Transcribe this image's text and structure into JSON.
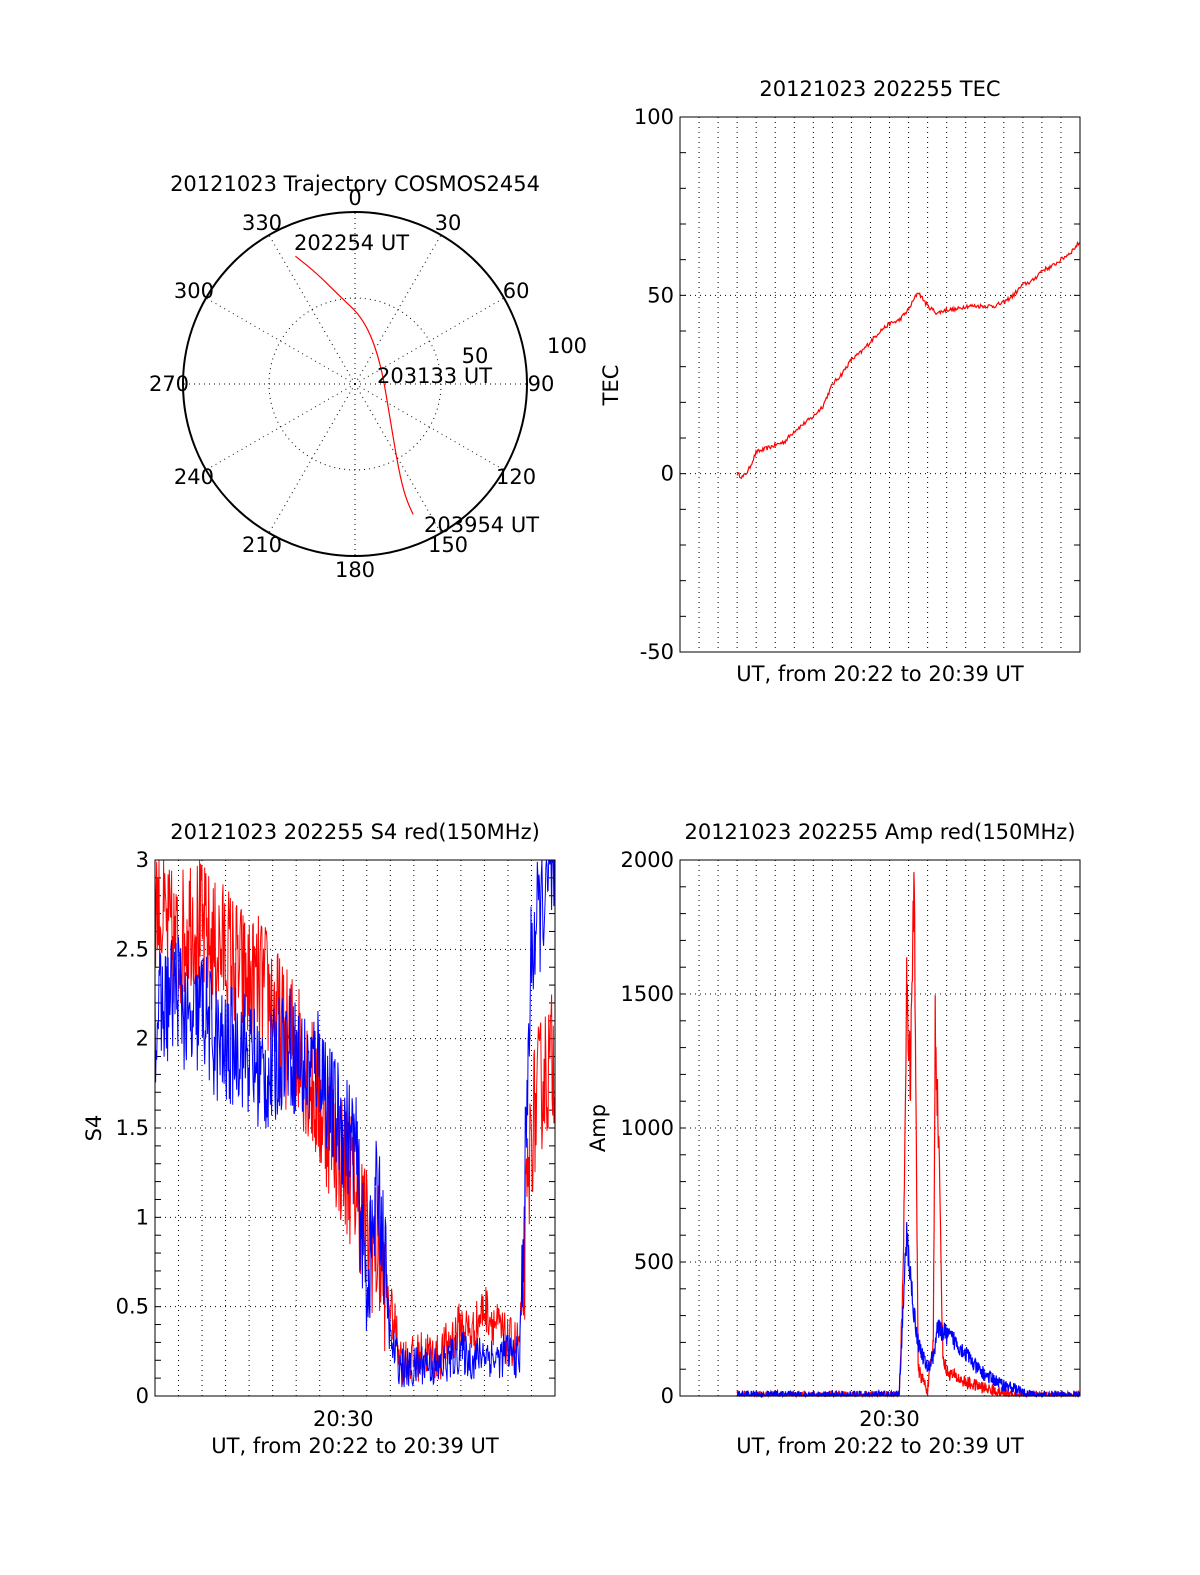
{
  "colors": {
    "red": "#ff0000",
    "blue": "#0000ff",
    "black": "#000000",
    "background": "#ffffff"
  },
  "chart_data": [
    {
      "id": "trajectory",
      "type": "polar",
      "title": "20121023 Trajectory COSMOS2454",
      "angle_labels": [
        "0",
        "30",
        "60",
        "90",
        "120",
        "150",
        "180",
        "210",
        "240",
        "270",
        "300",
        "330"
      ],
      "radial_labels": [
        "50",
        "100"
      ],
      "rlim": [
        0,
        100
      ],
      "grid": true,
      "trajectory": {
        "color": "red",
        "points": [
          {
            "azimuth": 335,
            "radius": 82
          },
          {
            "azimuth": 341,
            "radius": 68
          },
          {
            "azimuth": 350,
            "radius": 52
          },
          {
            "azimuth": 8,
            "radius": 38
          },
          {
            "azimuth": 48,
            "radius": 20
          },
          {
            "azimuth": 140,
            "radius": 33
          },
          {
            "azimuth": 153,
            "radius": 56
          },
          {
            "azimuth": 156,
            "radius": 72
          },
          {
            "azimuth": 156,
            "radius": 83
          }
        ],
        "labels": [
          {
            "text": "202254 UT",
            "at": "start"
          },
          {
            "text": "203133 UT",
            "at": "middle"
          },
          {
            "text": "203954 UT",
            "at": "end"
          }
        ]
      }
    },
    {
      "id": "tec",
      "type": "line",
      "title": "20121023 202255 TEC",
      "xlabel": "UT, from 20:22 to 20:39 UT",
      "ylabel": "TEC",
      "ylim": [
        -50,
        100
      ],
      "yticks": [
        "-50",
        "0",
        "50",
        "100"
      ],
      "xlim_minutes_after_2022": [
        -3,
        18
      ],
      "xticks": [],
      "grid": true,
      "series": [
        {
          "color": "red",
          "x_minutes_after_2022": [
            0.0,
            0.3,
            0.6,
            1.0,
            1.5,
            2.0,
            2.5,
            3.0,
            3.5,
            4.0,
            4.5,
            5.0,
            5.5,
            6.0,
            6.5,
            7.0,
            7.5,
            8.0,
            8.5,
            9.0,
            9.5,
            10.0,
            10.5,
            11.0,
            11.5,
            12.0,
            12.5,
            13.0,
            13.5,
            14.0,
            14.5,
            15.0,
            15.5,
            16.0,
            16.5,
            17.0,
            17.5,
            18.0
          ],
          "y": [
            0,
            -1,
            1,
            6,
            7,
            8,
            9,
            12,
            14,
            16,
            19,
            25,
            28,
            32,
            34,
            37,
            40,
            42,
            43,
            46,
            51,
            47,
            45,
            46,
            46,
            47,
            47,
            47,
            47,
            48,
            50,
            53,
            54,
            57,
            58,
            60,
            62,
            65
          ]
        }
      ]
    },
    {
      "id": "s4",
      "type": "line",
      "title": "20121023 202255 S4 red(150MHz)",
      "xlabel": "UT, from 20:22 to 20:39 UT",
      "ylabel": "S4",
      "ylim": [
        0,
        3
      ],
      "yticks": [
        "0",
        "0.5",
        "1",
        "1.5",
        "2",
        "2.5",
        "3"
      ],
      "xlim_minutes_after_2022": [
        0,
        17
      ],
      "xticks": [
        {
          "label": "20:30",
          "minute": 8
        }
      ],
      "grid": true,
      "series": [
        {
          "color": "red",
          "x_minutes_after_2022": [
            0.0,
            0.5,
            1.0,
            1.5,
            2.0,
            2.5,
            3.0,
            3.5,
            4.0,
            4.5,
            5.0,
            5.5,
            6.0,
            6.5,
            7.0,
            7.5,
            8.0,
            8.5,
            9.0,
            9.5,
            10.0,
            10.5,
            11.0,
            11.5,
            12.0,
            12.5,
            13.0,
            13.5,
            14.0,
            14.5,
            15.0,
            15.5,
            16.0,
            16.5,
            17.0
          ],
          "y": [
            2.8,
            2.6,
            2.5,
            2.7,
            2.6,
            2.5,
            2.5,
            2.4,
            2.3,
            2.3,
            2.2,
            2.0,
            2.0,
            1.8,
            1.6,
            1.5,
            1.3,
            1.2,
            0.9,
            0.8,
            0.5,
            0.2,
            0.2,
            0.25,
            0.2,
            0.3,
            0.4,
            0.35,
            0.5,
            0.4,
            0.3,
            0.3,
            1.5,
            1.8,
            1.9
          ],
          "noise": 0.4
        },
        {
          "color": "blue",
          "x_minutes_after_2022": [
            0.0,
            0.5,
            1.0,
            1.5,
            2.0,
            2.5,
            3.0,
            3.5,
            4.0,
            4.5,
            5.0,
            5.5,
            6.0,
            6.5,
            7.0,
            7.5,
            8.0,
            8.5,
            9.0,
            9.5,
            10.0,
            10.5,
            11.0,
            11.5,
            12.0,
            12.5,
            13.0,
            13.5,
            14.0,
            14.5,
            15.0,
            15.5,
            16.0,
            16.5,
            17.0
          ],
          "y": [
            2.1,
            2.2,
            2.3,
            2.0,
            2.2,
            2.0,
            1.9,
            2.0,
            1.9,
            1.8,
            1.8,
            2.0,
            1.9,
            1.8,
            1.9,
            1.6,
            1.5,
            1.4,
            0.6,
            1.2,
            0.3,
            0.15,
            0.15,
            0.2,
            0.15,
            0.2,
            0.25,
            0.2,
            0.25,
            0.2,
            0.25,
            0.2,
            2.5,
            2.8,
            2.9
          ],
          "noise": 0.35
        }
      ]
    },
    {
      "id": "amp",
      "type": "line",
      "title": "20121023 202255 Amp red(150MHz)",
      "xlabel": "UT, from 20:22 to 20:39 UT",
      "ylabel": "Amp",
      "ylim": [
        0,
        2000
      ],
      "yticks": [
        "0",
        "500",
        "1000",
        "1500",
        "2000"
      ],
      "xlim_minutes_after_2022": [
        -3,
        18
      ],
      "xticks": [
        {
          "label": "20:30",
          "minute": 8
        }
      ],
      "grid": true,
      "series": [
        {
          "color": "red",
          "x_minutes_after_2022": [
            0.0,
            8.0,
            8.5,
            8.7,
            8.9,
            9.1,
            9.3,
            9.5,
            10.0,
            10.3,
            10.4,
            10.6,
            10.8,
            11.0,
            11.5,
            12.0,
            12.5,
            13.0,
            13.5,
            14.0,
            14.5,
            15.0,
            15.5,
            16.0,
            18.0
          ],
          "y": [
            0,
            0,
            0,
            400,
            1500,
            1200,
            1950,
            100,
            20,
            200,
            1400,
            900,
            150,
            90,
            70,
            50,
            40,
            30,
            20,
            10,
            5,
            0,
            0,
            0,
            0
          ]
        },
        {
          "color": "blue",
          "x_minutes_after_2022": [
            0.0,
            8.0,
            8.5,
            8.7,
            8.9,
            9.1,
            9.3,
            9.5,
            10.0,
            10.3,
            10.5,
            11.0,
            11.5,
            12.0,
            12.5,
            13.0,
            13.5,
            14.0,
            14.5,
            15.0,
            15.5,
            16.0,
            18.0
          ],
          "y": [
            0,
            0,
            0,
            300,
            600,
            450,
            300,
            200,
            100,
            150,
            250,
            230,
            200,
            160,
            110,
            80,
            60,
            40,
            30,
            10,
            0,
            0,
            0
          ]
        }
      ]
    }
  ]
}
